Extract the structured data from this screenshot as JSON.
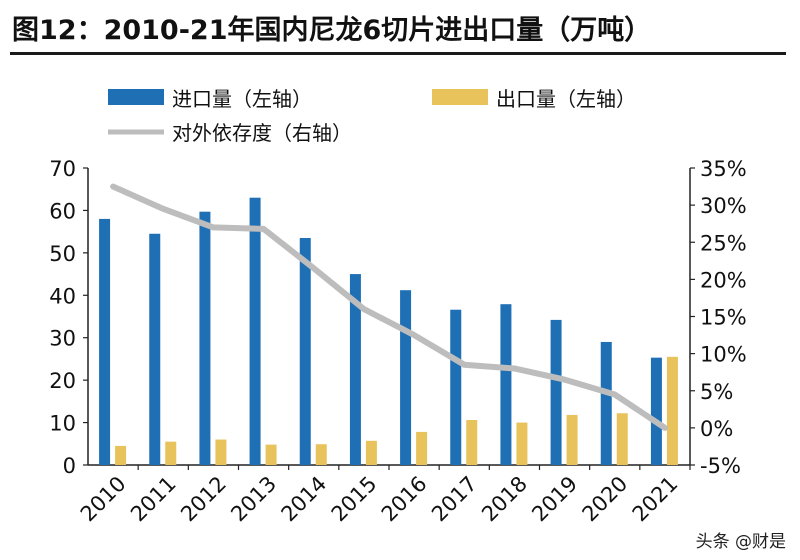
{
  "title": "图12：2010-21年国内尼龙6切片进出口量（万吨）",
  "watermark": "头条 @财是",
  "colors": {
    "import": "#1f6fb5",
    "export": "#e8c35b",
    "dependency": "#bdbdbd",
    "axis": "#222222"
  },
  "chart_data": {
    "type": "bar",
    "categories": [
      "2010",
      "2011",
      "2012",
      "2013",
      "2014",
      "2015",
      "2016",
      "2017",
      "2018",
      "2019",
      "2020",
      "2021"
    ],
    "series": [
      {
        "name": "进口量（左轴）",
        "type": "bar",
        "axis": "left",
        "values": [
          58,
          54.5,
          59.7,
          63,
          53.5,
          45,
          41.2,
          36.6,
          37.9,
          34.2,
          29,
          25.3
        ]
      },
      {
        "name": "出口量（左轴）",
        "type": "bar",
        "axis": "left",
        "values": [
          4.5,
          5.5,
          6,
          4.8,
          4.9,
          5.7,
          7.8,
          10.6,
          10,
          11.8,
          12.2,
          25.5
        ]
      },
      {
        "name": "对外依存度（右轴）",
        "type": "line",
        "axis": "right",
        "values": [
          32.5,
          29.5,
          27,
          26.8,
          21.5,
          16,
          12.5,
          8.5,
          8,
          6.5,
          4.5,
          0
        ]
      }
    ],
    "y_left": {
      "min": 0,
      "max": 70,
      "step": 10,
      "ticks": [
        "0",
        "10",
        "20",
        "30",
        "40",
        "50",
        "60",
        "70"
      ]
    },
    "y_right": {
      "min": -5,
      "max": 35,
      "step": 5,
      "ticks": [
        "-5%",
        "0%",
        "5%",
        "10%",
        "15%",
        "20%",
        "25%",
        "30%",
        "35%"
      ]
    },
    "legend_placement": "top",
    "grid": false
  }
}
